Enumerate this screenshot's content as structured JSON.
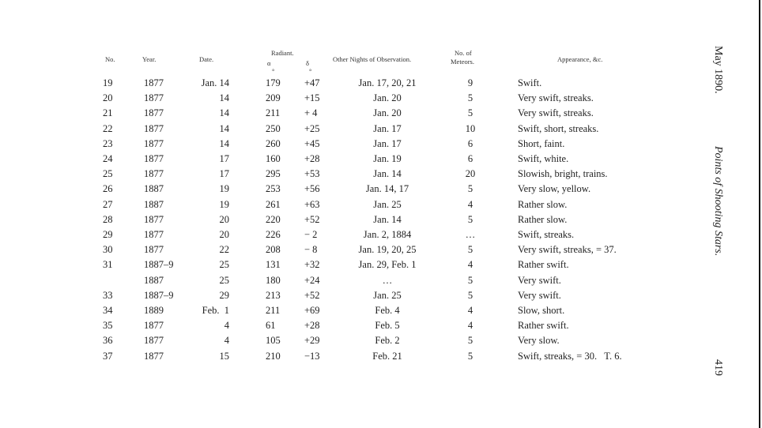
{
  "headers": {
    "no": "No.",
    "year": "Year.",
    "date": "Date.",
    "radiant": "Radiant.",
    "alpha": "α",
    "delta": "δ",
    "other": "Other Nights of Observation.",
    "meteors_1": "No. of",
    "meteors_2": "Meteors.",
    "appearance": "Appearance, &c."
  },
  "degree_marks": {
    "alpha": "°",
    "delta": "°"
  },
  "rows": [
    {
      "no": "19",
      "year": "1877",
      "date": "Jan. 14",
      "a": "179",
      "d": "+47",
      "other": "Jan. 17, 20, 21",
      "meteors": "9",
      "appearance": "Swift."
    },
    {
      "no": "20",
      "year": "1877",
      "date": "14",
      "a": "209",
      "d": "+15",
      "other": "Jan. 20",
      "meteors": "5",
      "appearance": "Very swift, streaks."
    },
    {
      "no": "21",
      "year": "1877",
      "date": "14",
      "a": "211",
      "d": "+ 4",
      "other": "Jan. 20",
      "meteors": "5",
      "appearance": "Very swift, streaks."
    },
    {
      "no": "22",
      "year": "1877",
      "date": "14",
      "a": "250",
      "d": "+25",
      "other": "Jan. 17",
      "meteors": "10",
      "appearance": "Swift, short, streaks."
    },
    {
      "no": "23",
      "year": "1877",
      "date": "14",
      "a": "260",
      "d": "+45",
      "other": "Jan. 17",
      "meteors": "6",
      "appearance": "Short, faint."
    },
    {
      "no": "24",
      "year": "1877",
      "date": "17",
      "a": "160",
      "d": "+28",
      "other": "Jan. 19",
      "meteors": "6",
      "appearance": "Swift, white."
    },
    {
      "no": "25",
      "year": "1877",
      "date": "17",
      "a": "295",
      "d": "+53",
      "other": "Jan. 14",
      "meteors": "20",
      "appearance": "Slowish, bright, trains."
    },
    {
      "no": "26",
      "year": "1887",
      "date": "19",
      "a": "253",
      "d": "+56",
      "other": "Jan. 14, 17",
      "meteors": "5",
      "appearance": "Very slow, yellow."
    },
    {
      "no": "27",
      "year": "1887",
      "date": "19",
      "a": "261",
      "d": "+63",
      "other": "Jan. 25",
      "meteors": "4",
      "appearance": "Rather slow."
    },
    {
      "no": "28",
      "year": "1877",
      "date": "20",
      "a": "220",
      "d": "+52",
      "other": "Jan. 14",
      "meteors": "5",
      "appearance": "Rather slow."
    },
    {
      "no": "29",
      "year": "1877",
      "date": "20",
      "a": "226",
      "d": "− 2",
      "other": "Jan. 2, 1884",
      "meteors": "…",
      "appearance": "Swift, streaks."
    },
    {
      "no": "30",
      "year": "1877",
      "date": "22",
      "a": "208",
      "d": "− 8",
      "other": "Jan. 19, 20, 25",
      "meteors": "5",
      "appearance": "Very swift, streaks, = 37."
    },
    {
      "no": "31",
      "year": "1887–9",
      "date": "25",
      "a": "131",
      "d": "+32",
      "other": "Jan. 29, Feb. 1",
      "meteors": "4",
      "appearance": "Rather swift."
    },
    {
      "no": "",
      "year": "1887",
      "date": "25",
      "a": "180",
      "d": "+24",
      "other": "…",
      "meteors": "5",
      "appearance": "Very swift."
    },
    {
      "no": "33",
      "year": "1887–9",
      "date": "29",
      "a": "213",
      "d": "+52",
      "other": "Jan. 25",
      "meteors": "5",
      "appearance": "Very swift."
    },
    {
      "no": "34",
      "year": "1889",
      "date": "Feb.  1",
      "a": "211",
      "d": "+69",
      "other": "Feb. 4",
      "meteors": "4",
      "appearance": "Slow, short."
    },
    {
      "no": "35",
      "year": "1877",
      "date": "4",
      "a": "61",
      "d": "+28",
      "other": "Feb. 5",
      "meteors": "4",
      "appearance": "Rather swift."
    },
    {
      "no": "36",
      "year": "1877",
      "date": "4",
      "a": "105",
      "d": "+29",
      "other": "Feb. 2",
      "meteors": "5",
      "appearance": "Very slow."
    },
    {
      "no": "37",
      "year": "1877",
      "date": "15",
      "a": "210",
      "d": "−13",
      "other": "Feb. 21",
      "meteors": "5",
      "appearance": "Swift, streaks, = 30.   T. 6."
    }
  ],
  "margin": {
    "date": "May 1890.",
    "title": "Points of Shooting Stars.",
    "page": "419"
  }
}
